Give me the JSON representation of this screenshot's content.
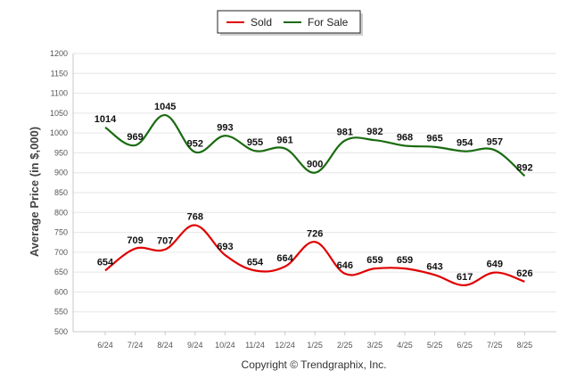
{
  "chart_data": {
    "type": "line",
    "categories": [
      "6/24",
      "7/24",
      "8/24",
      "9/24",
      "10/24",
      "11/24",
      "12/24",
      "1/25",
      "2/25",
      "3/25",
      "4/25",
      "5/25",
      "6/25",
      "7/25",
      "8/25"
    ],
    "series": [
      {
        "name": "Sold",
        "color": "#e00000",
        "values": [
          654,
          709,
          707,
          768,
          693,
          654,
          664,
          726,
          646,
          659,
          659,
          643,
          617,
          649,
          626
        ]
      },
      {
        "name": "For Sale",
        "color": "#1a6b10",
        "values": [
          1014,
          969,
          1045,
          952,
          993,
          955,
          961,
          900,
          981,
          982,
          968,
          965,
          954,
          957,
          892
        ]
      }
    ],
    "ylabel": "Average Price (in $,000)",
    "xlabel": "",
    "ylim": [
      500,
      1200
    ],
    "yticks": [
      500,
      550,
      600,
      650,
      700,
      750,
      800,
      850,
      900,
      950,
      1000,
      1050,
      1100,
      1150,
      1200
    ],
    "grid": true,
    "legend_position": "top-center"
  },
  "footer": {
    "copyright": "Copyright © Trendgraphix, Inc."
  }
}
